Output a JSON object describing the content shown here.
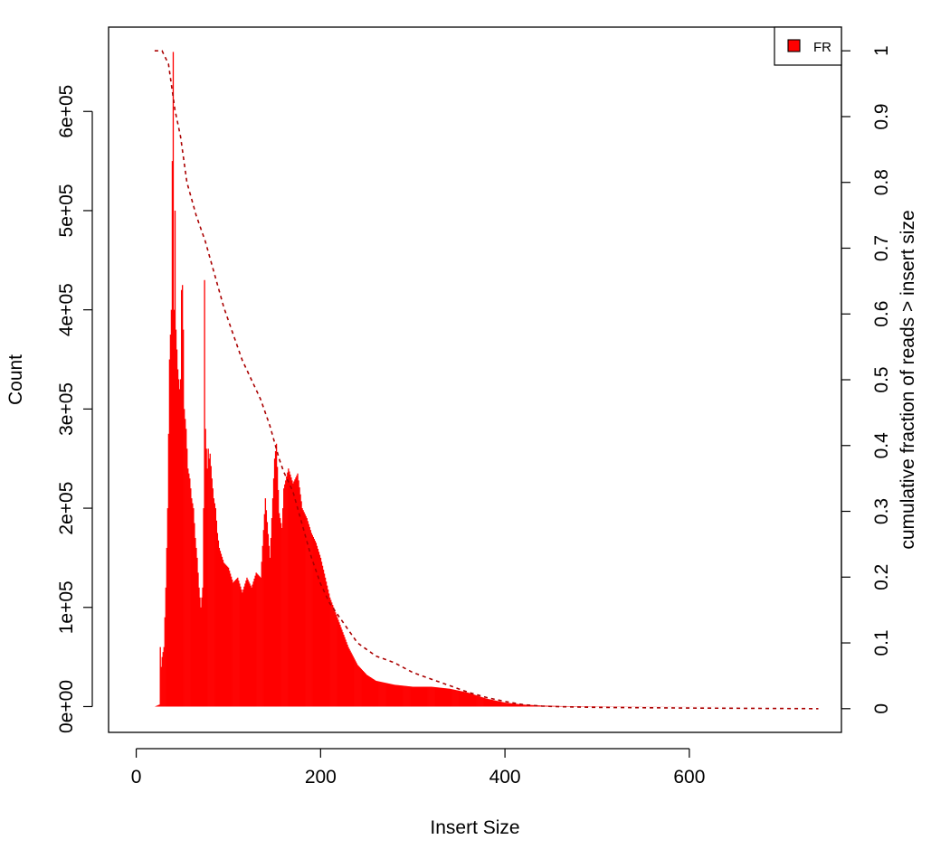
{
  "chart_data": {
    "type": "bar",
    "xlabel": "Insert Size",
    "ylabel": "Count",
    "y2label": "cumulative fraction of reads > insert size",
    "xlim": [
      -30,
      765
    ],
    "ylim": [
      -26000,
      685000
    ],
    "y2lim": [
      -0.036,
      1.036
    ],
    "xticks": [
      0,
      200,
      400,
      600
    ],
    "xtick_labels": [
      "0",
      "200",
      "400",
      "600"
    ],
    "yticks": [
      0,
      100000,
      200000,
      300000,
      400000,
      500000,
      600000
    ],
    "ytick_labels": [
      "0e+00",
      "1e+05",
      "2e+05",
      "3e+05",
      "4e+05",
      "5e+05",
      "6e+05"
    ],
    "y2ticks": [
      0,
      0.1,
      0.2,
      0.3,
      0.4,
      0.5,
      0.6,
      0.7,
      0.8,
      0.9,
      1
    ],
    "y2tick_labels": [
      "0",
      "0.1",
      "0.2",
      "0.3",
      "0.4",
      "0.5",
      "0.6",
      "0.7",
      "0.8",
      "0.9",
      "1"
    ],
    "legend": {
      "position": "top-right",
      "entries": [
        {
          "label": "FR",
          "color": "#ff0000"
        }
      ]
    },
    "series": [
      {
        "name": "FR",
        "kind": "histogram",
        "color": "#ff0000",
        "x": [
          20,
          25,
          26,
          27,
          28,
          30,
          32,
          34,
          36,
          38,
          39,
          40,
          41,
          42,
          43,
          44,
          45,
          46,
          47,
          48,
          49,
          50,
          51,
          52,
          54,
          56,
          58,
          60,
          62,
          64,
          66,
          68,
          70,
          72,
          73,
          74,
          75,
          76,
          77,
          78,
          79,
          80,
          82,
          84,
          86,
          88,
          90,
          95,
          100,
          105,
          110,
          115,
          120,
          125,
          130,
          135,
          140,
          145,
          150,
          152,
          155,
          158,
          160,
          165,
          170,
          175,
          180,
          185,
          190,
          195,
          200,
          210,
          220,
          230,
          240,
          250,
          260,
          270,
          280,
          290,
          300,
          320,
          340,
          360,
          380,
          400,
          420,
          440,
          460,
          500,
          550,
          600,
          650,
          700,
          740
        ],
        "values": [
          0,
          2000,
          60000,
          40000,
          50000,
          60000,
          120000,
          200000,
          350000,
          400000,
          550000,
          660000,
          400000,
          500000,
          380000,
          360000,
          340000,
          330000,
          320000,
          330000,
          420000,
          425000,
          380000,
          300000,
          280000,
          240000,
          230000,
          210000,
          200000,
          170000,
          150000,
          120000,
          100000,
          120000,
          200000,
          430000,
          280000,
          260000,
          240000,
          260000,
          250000,
          255000,
          230000,
          210000,
          200000,
          175000,
          160000,
          145000,
          140000,
          125000,
          130000,
          115000,
          130000,
          120000,
          135000,
          130000,
          210000,
          150000,
          250000,
          265000,
          195000,
          180000,
          220000,
          240000,
          225000,
          235000,
          200000,
          190000,
          175000,
          165000,
          150000,
          110000,
          85000,
          60000,
          42000,
          32000,
          26000,
          24000,
          22000,
          21000,
          20000,
          20000,
          18000,
          14000,
          8000,
          4000,
          2000,
          1000,
          500,
          200,
          100,
          50,
          20,
          10,
          0
        ]
      },
      {
        "name": "",
        "kind": "cumulative",
        "axis": "right",
        "color": "#aa0000",
        "x": [
          20,
          28,
          35,
          42,
          48,
          55,
          65,
          75,
          85,
          95,
          105,
          115,
          125,
          135,
          145,
          155,
          160,
          170,
          180,
          190,
          200,
          210,
          220,
          230,
          240,
          250,
          260,
          280,
          300,
          320,
          340,
          360,
          380,
          400,
          420,
          440,
          460,
          500,
          600,
          740
        ],
        "values": [
          1.0,
          1.0,
          0.98,
          0.91,
          0.87,
          0.8,
          0.75,
          0.71,
          0.66,
          0.61,
          0.57,
          0.53,
          0.5,
          0.47,
          0.43,
          0.38,
          0.36,
          0.33,
          0.28,
          0.23,
          0.19,
          0.16,
          0.14,
          0.12,
          0.1,
          0.09,
          0.08,
          0.07,
          0.055,
          0.045,
          0.035,
          0.025,
          0.017,
          0.011,
          0.006,
          0.004,
          0.003,
          0.002,
          0.001,
          0.0
        ]
      }
    ]
  }
}
